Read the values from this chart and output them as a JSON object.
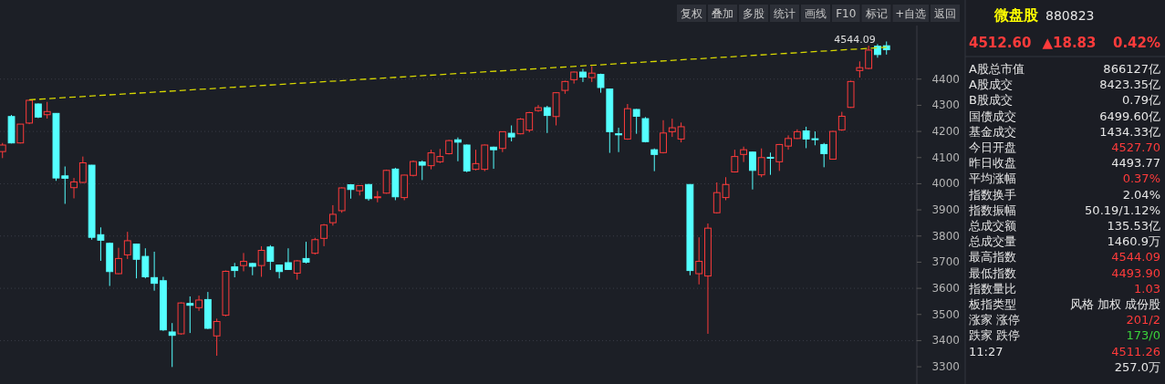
{
  "chart_data": [
    {
      "type": "candlestick",
      "categories": [
        null,
        null,
        null,
        null,
        null,
        null,
        null,
        null,
        null,
        null,
        null,
        null,
        null,
        null,
        null,
        null,
        null,
        null,
        null,
        null,
        null,
        null,
        null,
        null,
        null,
        null,
        null,
        null,
        null,
        null,
        null,
        null,
        null,
        null,
        null,
        null,
        null,
        null,
        null,
        null,
        null,
        null,
        null,
        null,
        null,
        null,
        null,
        null,
        null,
        null,
        null,
        null,
        null,
        null,
        null,
        null,
        null,
        null,
        null,
        null,
        null,
        null,
        null,
        null,
        null,
        null,
        null,
        null,
        null,
        null,
        null,
        null,
        null,
        null,
        null,
        null,
        null,
        null,
        null,
        null,
        null,
        null,
        null,
        null,
        null,
        null,
        null,
        null,
        null,
        null,
        null,
        null,
        null,
        null,
        null,
        null,
        null,
        null,
        null,
        null
      ],
      "colors": [
        "#ff3b3b",
        "#54ffff",
        "#ff3b3b",
        "#ff3b3b",
        "#54ffff",
        "#ff3b3b",
        "#54ffff",
        "#54ffff",
        "#ff3b3b",
        "#ff3b3b",
        "#54ffff",
        "#54ffff",
        "#54ffff",
        "#ff3b3b",
        "#ff3b3b",
        "#54ffff",
        "#54ffff",
        "#54ffff",
        "#54ffff",
        "#54ffff",
        "#ff3b3b",
        "#54ffff",
        "#ff3b3b",
        "#54ffff",
        "#ff3b3b",
        "#ff3b3b",
        "#54ffff",
        "#ff3b3b",
        "#54ffff",
        "#ff3b3b",
        "#54ffff",
        "#54ffff",
        "#54ffff",
        "#ff3b3b",
        "#54ffff",
        "#ff3b3b",
        "#ff3b3b",
        "#ff3b3b",
        "#ff3b3b",
        "#54ffff",
        "#ff3b3b",
        "#54ffff",
        "#ff3b3b",
        "#ff3b3b",
        "#54ffff",
        "#ff3b3b",
        "#ff3b3b",
        "#54ffff",
        "#ff3b3b",
        "#ff3b3b",
        "#ff3b3b",
        "#54ffff",
        "#54ffff",
        "#ff3b3b",
        "#ff3b3b",
        "#54ffff",
        "#ff3b3b",
        "#54ffff",
        "#ff3b3b",
        "#ff3b3b",
        "#ff3b3b",
        "#54ffff",
        "#ff3b3b",
        "#ff3b3b",
        "#ff3b3b",
        "#54ffff",
        "#ff3b3b",
        "#54ffff",
        "#54ffff",
        "#54ffff",
        "#ff3b3b",
        "#54ffff",
        "#54ffff",
        "#54ffff",
        "#ff3b3b",
        "#ff3b3b",
        "#ff3b3b",
        "#54ffff",
        "#ff3b3b",
        "#ff3b3b",
        "#ff3b3b",
        "#ff3b3b",
        "#ff3b3b",
        "#ff3b3b",
        "#54ffff",
        "#ff3b3b",
        "#54ffff",
        "#ff3b3b",
        "#ff3b3b",
        "#ff3b3b",
        "#54ffff",
        "#54ffff",
        "#54ffff",
        "#ff3b3b",
        "#ff3b3b",
        "#ff3b3b",
        "#ff3b3b",
        "#ff3b3b",
        "#54ffff",
        "#54ffff"
      ],
      "ohlc": [
        [
          4123,
          4156,
          4098,
          4148
        ],
        [
          4257,
          4263,
          4154,
          4156
        ],
        [
          4156,
          4228,
          4154,
          4228
        ],
        [
          4232,
          4321,
          4228,
          4319
        ],
        [
          4305,
          4307,
          4251,
          4255
        ],
        [
          4264,
          4313,
          4249,
          4276
        ],
        [
          4269,
          4270,
          4011,
          4022
        ],
        [
          4030,
          4066,
          3923,
          4021
        ],
        [
          3985,
          4022,
          3944,
          4007
        ],
        [
          4005,
          4104,
          4003,
          4080
        ],
        [
          4071,
          4072,
          3786,
          3795
        ],
        [
          3805,
          3833,
          3705,
          3784
        ],
        [
          3772,
          3775,
          3609,
          3664
        ],
        [
          3656,
          3755,
          3654,
          3714
        ],
        [
          3728,
          3816,
          3712,
          3782
        ],
        [
          3769,
          3770,
          3638,
          3711
        ],
        [
          3722,
          3753,
          3638,
          3644
        ],
        [
          3641,
          3740,
          3591,
          3619
        ],
        [
          3629,
          3644,
          3437,
          3441
        ],
        [
          3433,
          3467,
          3299,
          3420
        ],
        [
          3426,
          3546,
          3423,
          3544
        ],
        [
          3542,
          3569,
          3429,
          3535
        ],
        [
          3526,
          3572,
          3514,
          3555
        ],
        [
          3557,
          3586,
          3444,
          3447
        ],
        [
          3418,
          3484,
          3342,
          3473
        ],
        [
          3497,
          3668,
          3493,
          3665
        ],
        [
          3682,
          3697,
          3642,
          3668
        ],
        [
          3687,
          3735,
          3665,
          3703
        ],
        [
          3695,
          3697,
          3650,
          3684
        ],
        [
          3687,
          3761,
          3644,
          3745
        ],
        [
          3758,
          3765,
          3670,
          3703
        ],
        [
          3689,
          3691,
          3638,
          3664
        ],
        [
          3698,
          3753,
          3670,
          3672
        ],
        [
          3658,
          3708,
          3633,
          3705
        ],
        [
          3714,
          3778,
          3695,
          3700
        ],
        [
          3734,
          3793,
          3729,
          3786
        ],
        [
          3791,
          3846,
          3761,
          3842
        ],
        [
          3851,
          3918,
          3840,
          3883
        ],
        [
          3897,
          3986,
          3889,
          3984
        ],
        [
          3996,
          3998,
          3943,
          3978
        ],
        [
          3973,
          3993,
          3955,
          3993
        ],
        [
          3997,
          3999,
          3935,
          3943
        ],
        [
          3947,
          3972,
          3929,
          3950
        ],
        [
          3964,
          4054,
          3962,
          4051
        ],
        [
          4056,
          4061,
          3937,
          3950
        ],
        [
          3947,
          4034,
          3937,
          4033
        ],
        [
          4032,
          4089,
          4028,
          4085
        ],
        [
          4083,
          4089,
          4014,
          4071
        ],
        [
          4069,
          4130,
          4055,
          4118
        ],
        [
          4084,
          4133,
          4079,
          4104
        ],
        [
          4115,
          4168,
          4112,
          4165
        ],
        [
          4168,
          4177,
          4086,
          4159
        ],
        [
          4148,
          4150,
          4044,
          4049
        ],
        [
          4055,
          4130,
          4051,
          4077
        ],
        [
          4055,
          4150,
          4048,
          4148
        ],
        [
          4140,
          4142,
          4057,
          4130
        ],
        [
          4135,
          4200,
          4121,
          4199
        ],
        [
          4193,
          4223,
          4162,
          4179
        ],
        [
          4191,
          4251,
          4189,
          4247
        ],
        [
          4205,
          4275,
          4197,
          4272
        ],
        [
          4280,
          4301,
          4275,
          4291
        ],
        [
          4291,
          4298,
          4194,
          4261
        ],
        [
          4257,
          4350,
          4223,
          4348
        ],
        [
          4357,
          4394,
          4344,
          4391
        ],
        [
          4398,
          4429,
          4383,
          4427
        ],
        [
          4427,
          4439,
          4389,
          4408
        ],
        [
          4406,
          4449,
          4389,
          4423
        ],
        [
          4418,
          4421,
          4348,
          4368
        ],
        [
          4362,
          4363,
          4118,
          4199
        ],
        [
          4191,
          4214,
          4121,
          4187
        ],
        [
          4171,
          4305,
          4168,
          4287
        ],
        [
          4284,
          4286,
          4191,
          4258
        ],
        [
          4249,
          4255,
          4158,
          4161
        ],
        [
          4130,
          4135,
          4048,
          4112
        ],
        [
          4119,
          4243,
          4116,
          4194
        ],
        [
          4199,
          4249,
          4179,
          4214
        ],
        [
          4171,
          4234,
          4158,
          4218
        ],
        [
          3997,
          3997,
          3650,
          3668
        ],
        [
          3656,
          3795,
          3615,
          3703
        ],
        [
          3647,
          3848,
          3426,
          3830
        ],
        [
          3889,
          4005,
          3886,
          3966
        ],
        [
          3947,
          4025,
          3937,
          3997
        ],
        [
          4045,
          4130,
          4043,
          4104
        ],
        [
          4112,
          4142,
          4083,
          4130
        ],
        [
          4121,
          4123,
          3978,
          4051
        ],
        [
          4034,
          4135,
          4025,
          4100
        ],
        [
          4101,
          4119,
          4034,
          4098
        ],
        [
          4084,
          4152,
          4049,
          4150
        ],
        [
          4144,
          4185,
          4130,
          4173
        ],
        [
          4173,
          4208,
          4171,
          4199
        ],
        [
          4202,
          4218,
          4136,
          4171
        ],
        [
          4172,
          4200,
          4147,
          4169
        ],
        [
          4150,
          4156,
          4063,
          4115
        ],
        [
          4094,
          4202,
          4092,
          4200
        ],
        [
          4206,
          4275,
          4202,
          4258
        ],
        [
          4292,
          4394,
          4290,
          4391
        ],
        [
          4433,
          4468,
          4406,
          4444
        ],
        [
          4441,
          4528,
          4438,
          4511
        ],
        [
          4526,
          4534,
          4482,
          4494
        ],
        [
          4527.7,
          4544.09,
          4493.9,
          4512.6
        ]
      ],
      "series": [
        {
          "type": "line",
          "color": "#d8d800",
          "line_style": "dashed",
          "values": [
            null,
            null,
            null,
            4321,
            null,
            null,
            null,
            null,
            null,
            null,
            null,
            null,
            null,
            null,
            null,
            null,
            null,
            null,
            null,
            null,
            null,
            null,
            null,
            null,
            null,
            null,
            null,
            null,
            null,
            null,
            null,
            null,
            null,
            null,
            null,
            null,
            null,
            null,
            null,
            null,
            null,
            null,
            null,
            null,
            null,
            null,
            null,
            null,
            null,
            null,
            null,
            null,
            null,
            null,
            null,
            null,
            null,
            null,
            null,
            null,
            null,
            null,
            null,
            null,
            null,
            null,
            null,
            null,
            null,
            null,
            null,
            null,
            null,
            null,
            null,
            null,
            null,
            null,
            null,
            null,
            null,
            null,
            null,
            null,
            null,
            null,
            null,
            null,
            null,
            null,
            null,
            null,
            null,
            null,
            null,
            null,
            null,
            null,
            null,
            4522
          ]
        }
      ],
      "ylim": [
        3234,
        4605
      ],
      "yticks": [
        3300,
        3400,
        3500,
        3600,
        3700,
        3800,
        3900,
        4000,
        4100,
        4200,
        4300,
        4400
      ],
      "grid": "y",
      "tick_labels": "y",
      "annotations": [
        "4544.09"
      ]
    },
    {
      "type": "other",
      "annotations": [
        "复权",
        "叠加",
        "多股",
        "统计",
        "画线",
        "F10",
        "标记",
        "+自选",
        "返回"
      ]
    },
    {
      "type": "other",
      "title": "微盘股",
      "subtitle": "880823",
      "annotations": [
        "4512.60",
        "▲18.83",
        "0.42%"
      ],
      "categories": [
        "A股总市值",
        "A股成交",
        "B股成交",
        "国债成交",
        "基金成交",
        "今日开盘",
        "昨日收盘",
        "平均涨幅",
        "指数换手",
        "指数振幅",
        "总成交额",
        "总成交量",
        "最高指数",
        "最低指数",
        "指数量比",
        "板指类型",
        "涨家 涨停",
        "跌家 跌停",
        "11:27",
        null
      ],
      "value_labels": [
        "866127亿",
        "8423.35亿",
        "0.79亿",
        "6499.60亿",
        "1434.33亿",
        "4527.70",
        "4493.77",
        "0.37%",
        "2.04%",
        "50.19/1.12%",
        "135.53亿",
        "1460.9万",
        "4544.09",
        "4493.90",
        "1.03",
        "风格 加权 成份股",
        "201/2",
        "173/0",
        "4511.26",
        "257.0万"
      ],
      "colors": [
        "#e6e6e6",
        "#e6e6e6",
        "#e6e6e6",
        "#e6e6e6",
        "#e6e6e6",
        "#ff3b3b",
        "#e6e6e6",
        "#ff3b3b",
        "#e6e6e6",
        "#e6e6e6",
        "#e6e6e6",
        "#e6e6e6",
        "#ff3b3b",
        "#ff3b3b",
        "#ff3b3b",
        "#e6e6e6",
        "#ff3b3b",
        "#3bd33b",
        "#ff3b3b",
        "#e6e6e6"
      ]
    }
  ]
}
